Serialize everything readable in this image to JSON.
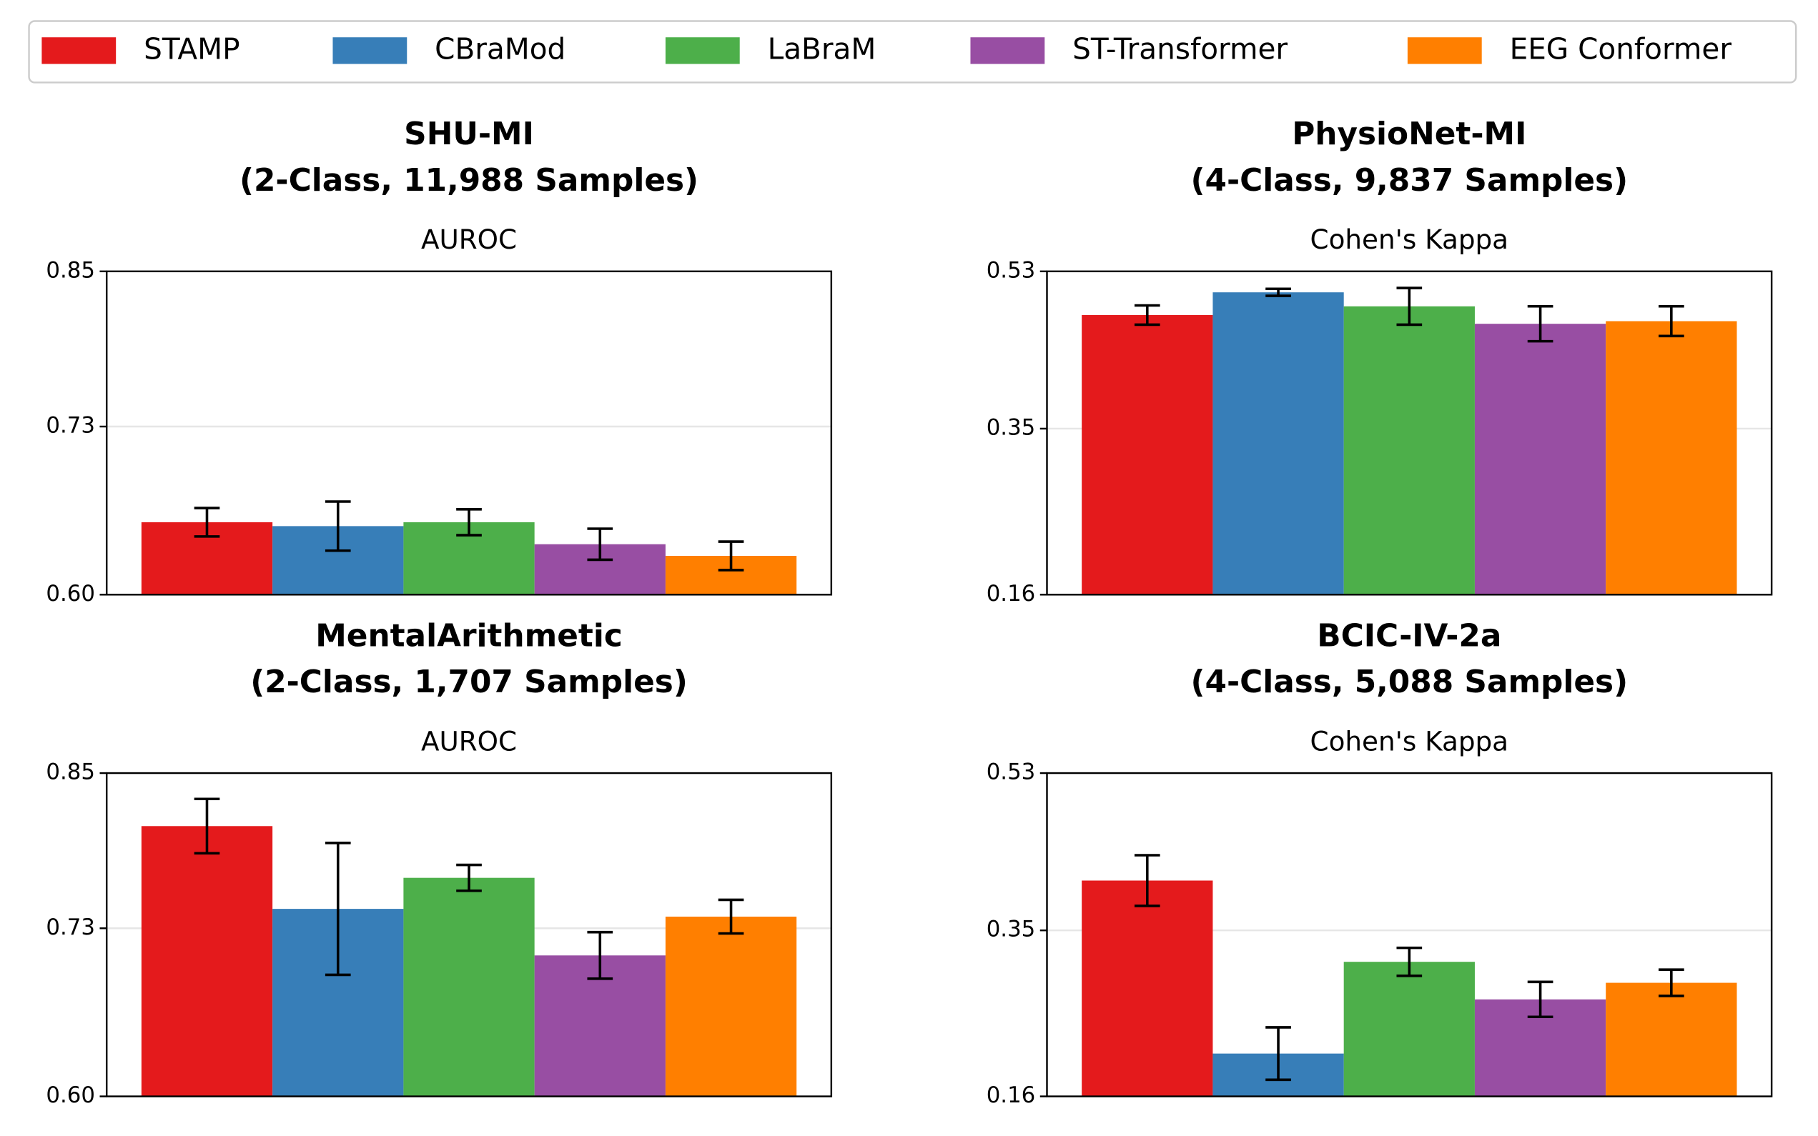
{
  "legend": [
    {
      "name": "STAMP",
      "color": "#e41a1c"
    },
    {
      "name": "CBraMod",
      "color": "#377eb8"
    },
    {
      "name": "LaBraM",
      "color": "#4daf4a"
    },
    {
      "name": "ST-Transformer",
      "color": "#984ea3"
    },
    {
      "name": "EEG Conformer",
      "color": "#ff7f00"
    }
  ],
  "chart_data": [
    {
      "type": "bar",
      "title": "SHU-MI",
      "subtitle": "(2-Class, 11,988 Samples)",
      "ylabel": "AUROC",
      "values": [
        0.656,
        0.653,
        0.656,
        0.639,
        0.63
      ],
      "errors": [
        0.011,
        0.019,
        0.01,
        0.012,
        0.011
      ],
      "ylim": [
        0.6,
        0.85
      ],
      "yticks": [
        {
          "value": 0.6,
          "label": "0.60"
        },
        0.73,
        0.85
      ],
      "grid": true
    },
    {
      "type": "bar",
      "title": "PhysioNet-MI",
      "subtitle": "(4-Class, 9,837 Samples)",
      "ylabel": "Cohen's Kappa",
      "values": [
        0.48,
        0.506,
        0.49,
        0.47,
        0.473
      ],
      "errors": [
        0.011,
        0.004,
        0.021,
        0.02,
        0.017
      ],
      "ylim": [
        0.16,
        0.53
      ],
      "yticks": [
        0.16,
        0.35,
        0.53
      ],
      "grid": true
    },
    {
      "type": "bar",
      "title": "MentalArithmetic",
      "subtitle": "(2-Class, 1,707 Samples)",
      "ylabel": "AUROC",
      "values": [
        0.809,
        0.745,
        0.769,
        0.709,
        0.739
      ],
      "errors": [
        0.021,
        0.051,
        0.01,
        0.018,
        0.013
      ],
      "ylim": [
        0.6,
        0.85
      ],
      "yticks": [
        {
          "value": 0.6,
          "label": "0.60"
        },
        0.73,
        0.85
      ],
      "grid": true
    },
    {
      "type": "bar",
      "title": "BCIC-IV-2a",
      "subtitle": "(4-Class, 5,088 Samples)",
      "ylabel": "Cohen's Kappa",
      "values": [
        0.407,
        0.209,
        0.314,
        0.271,
        0.29
      ],
      "errors": [
        0.029,
        0.03,
        0.016,
        0.02,
        0.015
      ],
      "ylim": [
        0.16,
        0.53
      ],
      "yticks": [
        0.16,
        0.35,
        0.53
      ],
      "grid": true
    }
  ]
}
